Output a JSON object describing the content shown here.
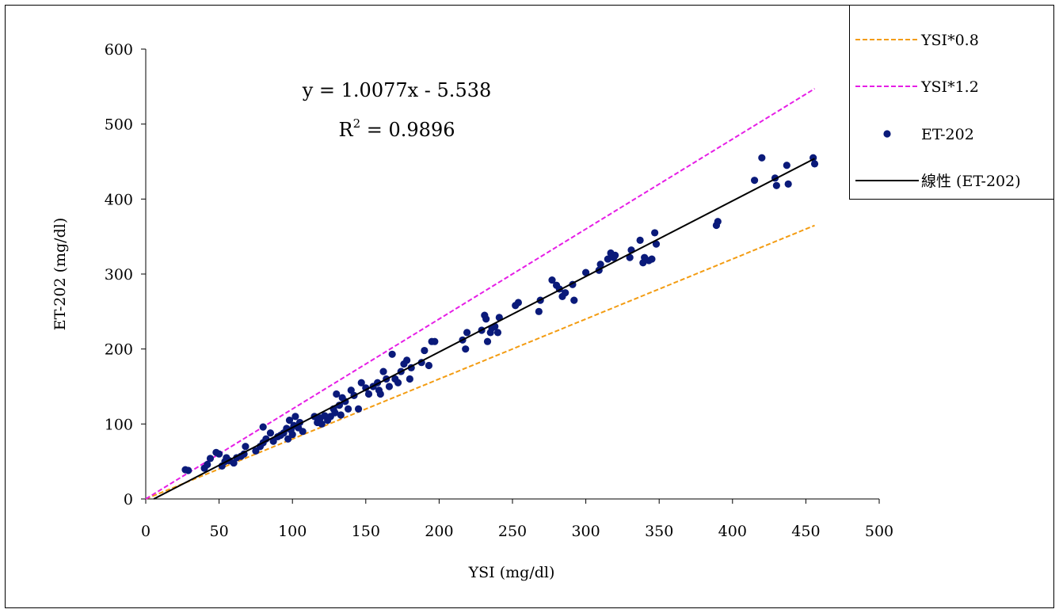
{
  "chart_data": {
    "type": "scatter",
    "title": "",
    "xlabel": "YSI (mg/dl)",
    "ylabel": "ET-202 (mg/dl)",
    "xlim": [
      0,
      500
    ],
    "ylim": [
      0,
      600
    ],
    "x_ticks": [
      0,
      50,
      100,
      150,
      200,
      250,
      300,
      350,
      400,
      450,
      500
    ],
    "y_ticks": [
      0,
      100,
      200,
      300,
      400,
      500,
      600
    ],
    "grid": false,
    "legend_position": "top-right",
    "equation": "y = 1.0077x - 5.538",
    "r_squared_label": "R",
    "r_squared_exp": "2",
    "r_squared_value": " = 0.9896",
    "series": [
      {
        "name": "YSI*0.8",
        "kind": "line",
        "style": "dashed",
        "color": "#f39c12",
        "x": [
          0,
          456
        ],
        "y": [
          0,
          364.8
        ]
      },
      {
        "name": "YSI*1.2",
        "kind": "line",
        "style": "dashed",
        "color": "#e61ee6",
        "x": [
          0,
          456
        ],
        "y": [
          0,
          547.2
        ]
      },
      {
        "name": "ET-202",
        "kind": "scatter",
        "color": "#0a1a7a",
        "points": [
          [
            27,
            39
          ],
          [
            29,
            38
          ],
          [
            40,
            41
          ],
          [
            42,
            46
          ],
          [
            44,
            54
          ],
          [
            48,
            62
          ],
          [
            50,
            60
          ],
          [
            52,
            44
          ],
          [
            54,
            50
          ],
          [
            55,
            55
          ],
          [
            57,
            51
          ],
          [
            60,
            48
          ],
          [
            62,
            55
          ],
          [
            65,
            57
          ],
          [
            67,
            60
          ],
          [
            68,
            70
          ],
          [
            75,
            64
          ],
          [
            78,
            70
          ],
          [
            80,
            75
          ],
          [
            80,
            96
          ],
          [
            82,
            80
          ],
          [
            85,
            88
          ],
          [
            87,
            77
          ],
          [
            90,
            83
          ],
          [
            92,
            85
          ],
          [
            94,
            88
          ],
          [
            96,
            94
          ],
          [
            97,
            80
          ],
          [
            98,
            105
          ],
          [
            99,
            92
          ],
          [
            100,
            86
          ],
          [
            101,
            98
          ],
          [
            102,
            110
          ],
          [
            104,
            95
          ],
          [
            105,
            102
          ],
          [
            107,
            90
          ],
          [
            115,
            110
          ],
          [
            117,
            102
          ],
          [
            119,
            108
          ],
          [
            120,
            100
          ],
          [
            122,
            111
          ],
          [
            124,
            105
          ],
          [
            126,
            110
          ],
          [
            128,
            120
          ],
          [
            129,
            115
          ],
          [
            130,
            140
          ],
          [
            132,
            125
          ],
          [
            133,
            112
          ],
          [
            134,
            135
          ],
          [
            136,
            130
          ],
          [
            138,
            120
          ],
          [
            140,
            145
          ],
          [
            142,
            138
          ],
          [
            145,
            120
          ],
          [
            147,
            155
          ],
          [
            150,
            148
          ],
          [
            152,
            140
          ],
          [
            155,
            150
          ],
          [
            158,
            155
          ],
          [
            159,
            145
          ],
          [
            160,
            140
          ],
          [
            162,
            170
          ],
          [
            164,
            160
          ],
          [
            166,
            150
          ],
          [
            168,
            193
          ],
          [
            170,
            160
          ],
          [
            172,
            155
          ],
          [
            174,
            170
          ],
          [
            176,
            180
          ],
          [
            178,
            185
          ],
          [
            180,
            160
          ],
          [
            181,
            175
          ],
          [
            188,
            182
          ],
          [
            190,
            198
          ],
          [
            193,
            178
          ],
          [
            195,
            210
          ],
          [
            197,
            210
          ],
          [
            216,
            212
          ],
          [
            218,
            200
          ],
          [
            219,
            222
          ],
          [
            229,
            225
          ],
          [
            231,
            245
          ],
          [
            232,
            240
          ],
          [
            233,
            210
          ],
          [
            235,
            222
          ],
          [
            236,
            228
          ],
          [
            238,
            230
          ],
          [
            240,
            222
          ],
          [
            241,
            242
          ],
          [
            252,
            258
          ],
          [
            254,
            262
          ],
          [
            268,
            250
          ],
          [
            269,
            265
          ],
          [
            277,
            292
          ],
          [
            280,
            285
          ],
          [
            282,
            280
          ],
          [
            284,
            270
          ],
          [
            286,
            275
          ],
          [
            291,
            286
          ],
          [
            292,
            265
          ],
          [
            300,
            302
          ],
          [
            309,
            305
          ],
          [
            310,
            313
          ],
          [
            315,
            320
          ],
          [
            317,
            328
          ],
          [
            319,
            322
          ],
          [
            320,
            325
          ],
          [
            330,
            322
          ],
          [
            331,
            332
          ],
          [
            337,
            345
          ],
          [
            339,
            315
          ],
          [
            340,
            322
          ],
          [
            343,
            318
          ],
          [
            345,
            320
          ],
          [
            347,
            355
          ],
          [
            348,
            340
          ],
          [
            389,
            365
          ],
          [
            390,
            370
          ],
          [
            415,
            425
          ],
          [
            420,
            455
          ],
          [
            429,
            428
          ],
          [
            430,
            418
          ],
          [
            437,
            445
          ],
          [
            438,
            420
          ],
          [
            455,
            455
          ],
          [
            456,
            447
          ]
        ]
      },
      {
        "name": "線性 (ET-202)",
        "kind": "trendline",
        "style": "solid",
        "color": "#000000",
        "slope": 1.0077,
        "intercept": -5.538,
        "x_range": [
          5.5,
          456
        ]
      }
    ]
  }
}
